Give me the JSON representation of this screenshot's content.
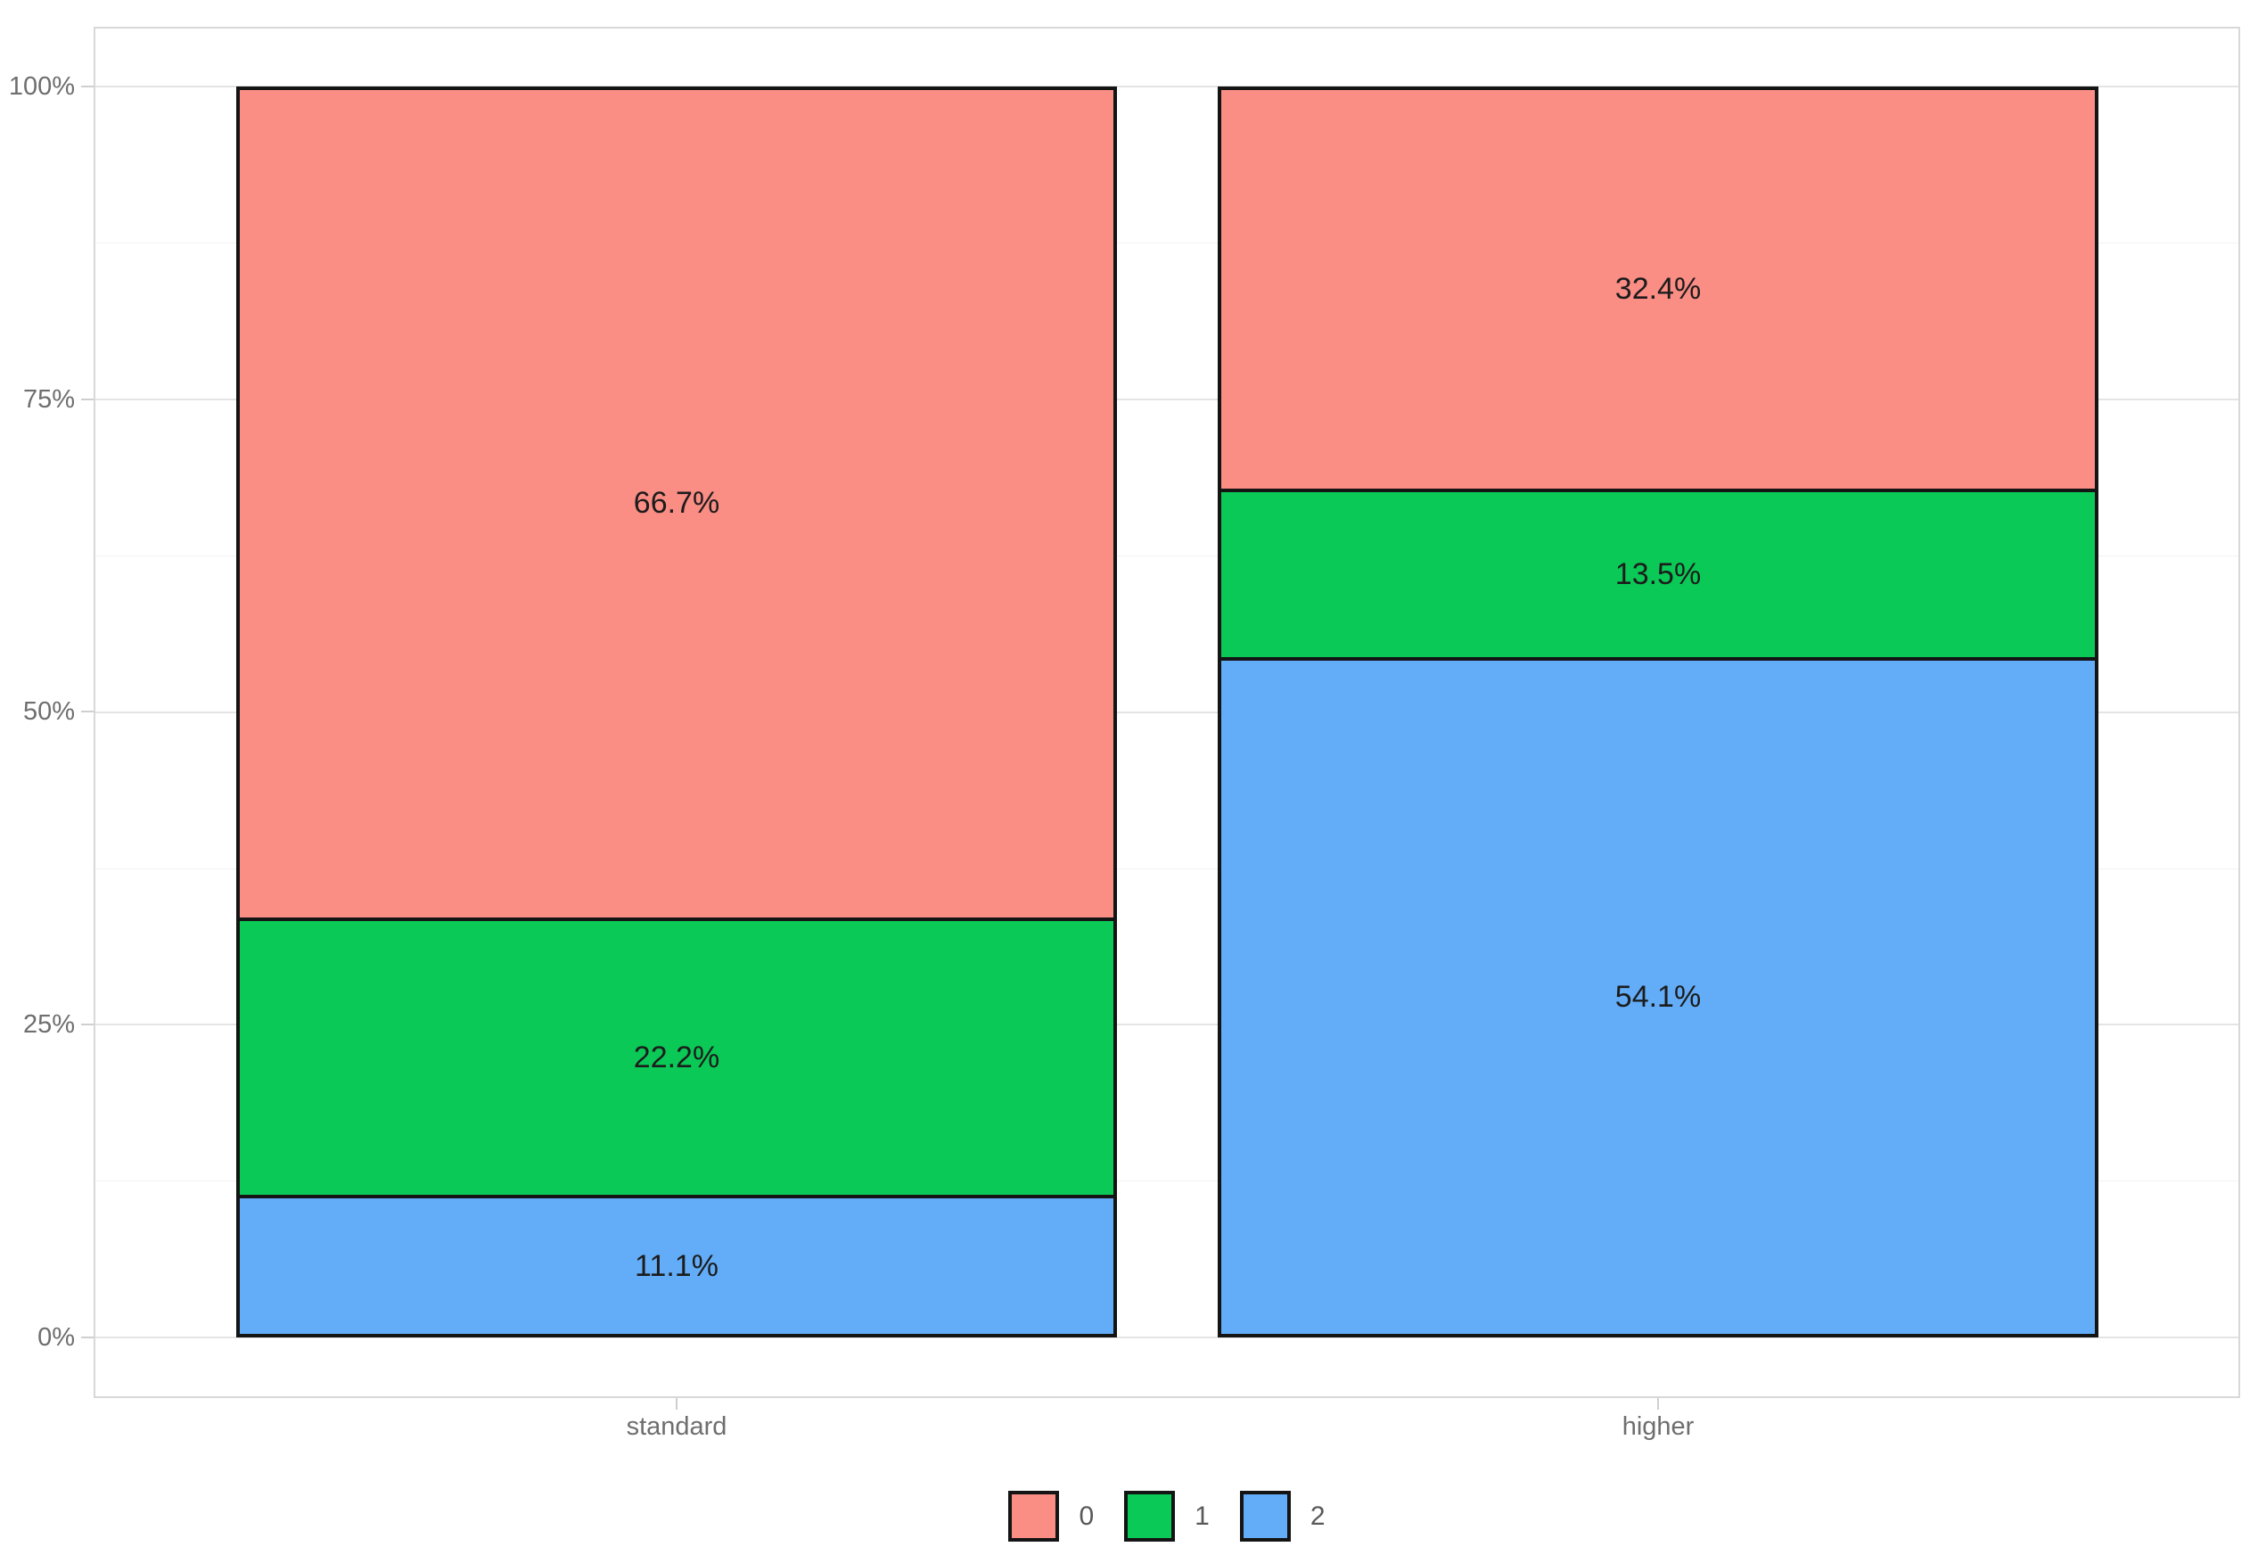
{
  "chart_data": {
    "type": "bar",
    "stacked": true,
    "percent": true,
    "title": "",
    "xlabel": "",
    "ylabel": "",
    "categories": [
      "standard",
      "higher"
    ],
    "series": [
      {
        "name": "0",
        "color": "#FA8D84",
        "values": [
          66.7,
          32.4
        ],
        "labels": [
          "66.7%",
          "32.4%"
        ]
      },
      {
        "name": "1",
        "color": "#0BC956",
        "values": [
          22.2,
          13.5
        ],
        "labels": [
          "22.2%",
          "13.5%"
        ]
      },
      {
        "name": "2",
        "color": "#63ADF8",
        "values": [
          11.1,
          54.1
        ],
        "labels": [
          "11.1%",
          "54.1%"
        ]
      }
    ],
    "y_ticks": [
      "0%",
      "25%",
      "50%",
      "75%",
      "100%"
    ],
    "ylim": [
      0,
      100
    ],
    "grid": "major+minor horizontal",
    "legend_position": "bottom",
    "style": {
      "segment_stroke": "#141414",
      "grid_major": "#e4e4e4",
      "grid_minor": "#f2f2f2",
      "panel_border": "#d8d8d8",
      "tick_color": "#cfcfcf",
      "axis_text_color": "#6e6e6e",
      "label_text_color": "#1c1c1c",
      "background": "#ffffff"
    }
  }
}
